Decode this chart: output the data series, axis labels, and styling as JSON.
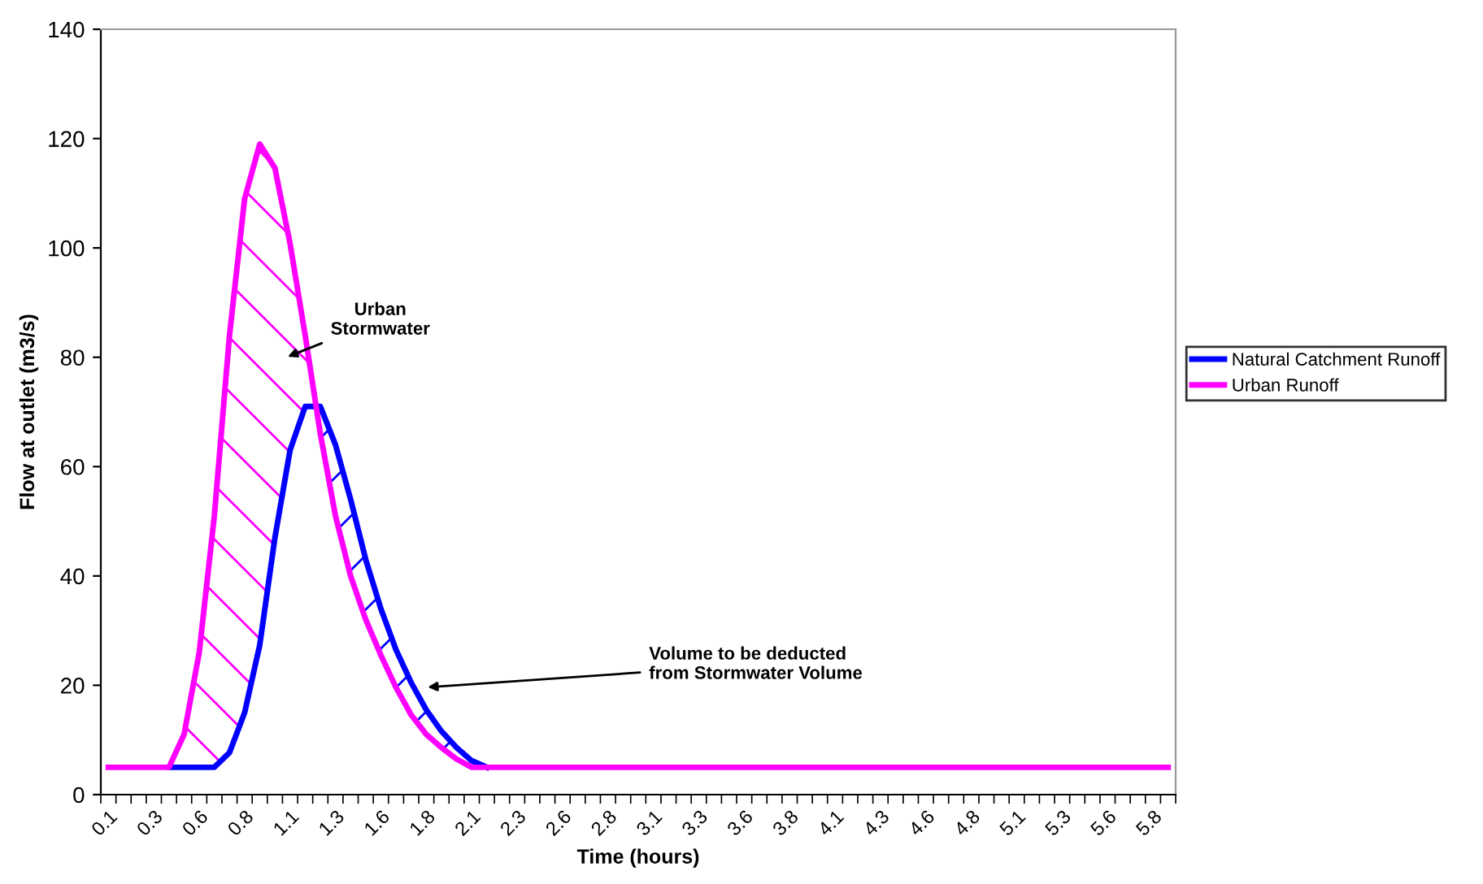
{
  "chart_data": {
    "type": "line",
    "xlabel": "Time (hours)",
    "ylabel": "Flow at outlet (m3/s)",
    "categories": [
      "0.1",
      null,
      null,
      "0.3",
      null,
      null,
      "0.6",
      null,
      null,
      "0.8",
      null,
      null,
      "1.1",
      null,
      null,
      "1.3",
      null,
      null,
      "1.6",
      null,
      null,
      "1.8",
      null,
      null,
      "2.1",
      null,
      null,
      "2.3",
      null,
      null,
      "2.6",
      null,
      null,
      "2.8",
      null,
      null,
      "3.1",
      null,
      null,
      "3.3",
      null,
      null,
      "3.6",
      null,
      null,
      "3.8",
      null,
      null,
      "4.1",
      null,
      null,
      "4.3",
      null,
      null,
      "4.6",
      null,
      null,
      "4.8",
      null,
      null,
      "5.1",
      null,
      null,
      "5.3",
      null,
      null,
      "5.6",
      null,
      null,
      "5.8",
      null
    ],
    "series": [
      {
        "name": "Natural Catchment Runoff",
        "color": "#0000ff",
        "values": [
          null,
          null,
          null,
          null,
          5,
          5,
          5,
          5,
          7.7,
          15,
          27.4,
          47,
          63,
          71,
          71,
          64,
          54,
          43,
          34,
          26.5,
          20.5,
          15.5,
          11.6,
          8.6,
          6.2,
          5,
          null,
          null,
          null,
          null,
          null,
          null,
          null,
          null,
          null,
          null,
          null,
          null,
          null,
          null,
          null,
          null,
          null,
          null,
          null,
          null,
          null,
          null,
          null,
          null,
          null,
          null,
          null,
          null,
          null,
          null,
          null,
          null,
          null,
          null,
          null,
          null,
          null,
          null,
          null,
          null,
          null,
          null,
          null,
          null,
          null
        ]
      },
      {
        "name": "Urban Runoff",
        "color": "#ff00ff",
        "values": [
          5,
          5,
          5,
          5,
          5,
          11,
          26,
          51,
          84,
          109,
          119,
          114.6,
          100.8,
          84,
          66,
          51,
          40,
          32,
          25.5,
          19.6,
          14.6,
          11,
          8.6,
          6.5,
          5,
          5,
          5,
          5,
          5,
          5,
          5,
          5,
          5,
          5,
          5,
          5,
          5,
          5,
          5,
          5,
          5,
          5,
          5,
          5,
          5,
          5,
          5,
          5,
          5,
          5,
          5,
          5,
          5,
          5,
          5,
          5,
          5,
          5,
          5,
          5,
          5,
          5,
          5,
          5,
          5,
          5,
          5,
          5,
          5,
          5,
          5
        ]
      }
    ],
    "ylim": [
      0,
      140
    ],
    "yticks": [
      0,
      20,
      40,
      60,
      80,
      100,
      120,
      140
    ],
    "annotations": [
      "Urban\nStormwater",
      "Volume to be deducted\nfrom Stormwater Volume"
    ],
    "grid": false,
    "legend": "right",
    "marker": "none",
    "line_style": "solid"
  }
}
